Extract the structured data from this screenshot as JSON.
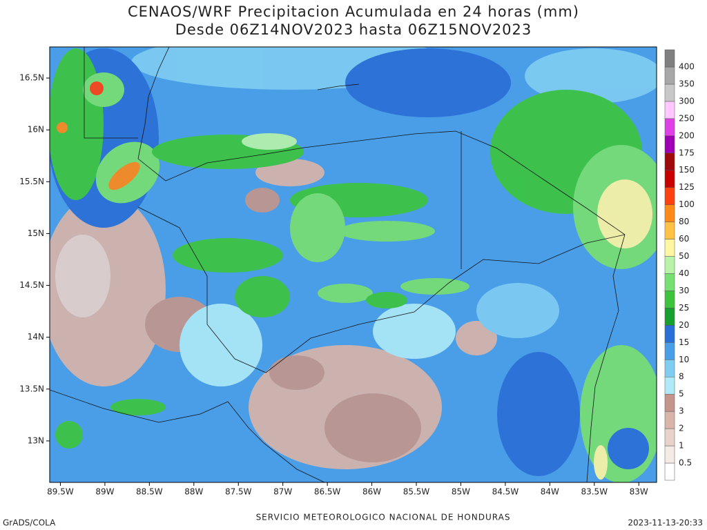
{
  "title": [
    "CENAOS/WRF Precipitacion Acumulada en 24 horas (mm)",
    "Desde 06Z14NOV2023 hasta 06Z15NOV2023"
  ],
  "map": {
    "xlim": [
      -89.62,
      -82.8
    ],
    "ylim": [
      12.6,
      16.8
    ],
    "xticks": [
      {
        "value": -89.5,
        "label": "89.5W"
      },
      {
        "value": -89,
        "label": "89W"
      },
      {
        "value": -88.5,
        "label": "88.5W"
      },
      {
        "value": -88,
        "label": "88W"
      },
      {
        "value": -87.5,
        "label": "87.5W"
      },
      {
        "value": -87,
        "label": "87W"
      },
      {
        "value": -86.5,
        "label": "86.5W"
      },
      {
        "value": -86,
        "label": "86W"
      },
      {
        "value": -85.5,
        "label": "85.5W"
      },
      {
        "value": -85,
        "label": "85W"
      },
      {
        "value": -84.5,
        "label": "84.5W"
      },
      {
        "value": -84,
        "label": "84W"
      },
      {
        "value": -83.5,
        "label": "83.5W"
      },
      {
        "value": -83,
        "label": "83W"
      }
    ],
    "yticks": [
      {
        "value": 13,
        "label": "13N"
      },
      {
        "value": 13.5,
        "label": "13.5N"
      },
      {
        "value": 14,
        "label": "14N"
      },
      {
        "value": 14.5,
        "label": "14.5N"
      },
      {
        "value": 15,
        "label": "15N"
      },
      {
        "value": 15.5,
        "label": "15.5N"
      },
      {
        "value": 16,
        "label": "16N"
      },
      {
        "value": 16.5,
        "label": "16.5N"
      }
    ]
  },
  "colorbar": {
    "levels": [
      0.5,
      1,
      2,
      3,
      5,
      8,
      10,
      15,
      20,
      25,
      30,
      40,
      50,
      60,
      80,
      100,
      125,
      150,
      175,
      200,
      250,
      300,
      350,
      400
    ],
    "colors": [
      "#ffffff",
      "#f5ebe6",
      "#e8d3ca",
      "#d9b5a9",
      "#c4968b",
      "#aeeaf7",
      "#80cdf2",
      "#4a9ee8",
      "#2a6fd6",
      "#179f30",
      "#3cc43c",
      "#78e070",
      "#b8f4a8",
      "#fff6a4",
      "#ffc244",
      "#ff8a18",
      "#ff4010",
      "#c80000",
      "#a00a0a",
      "#a000b4",
      "#e040e8",
      "#ffc8ff",
      "#c8c8c8",
      "#a8a8a8",
      "#808080"
    ]
  },
  "footer": {
    "left": "GrADS/COLA",
    "center": "SERVICIO METEOROLOGICO NACIONAL DE HONDURAS",
    "right": "2023-11-13-20:33"
  }
}
